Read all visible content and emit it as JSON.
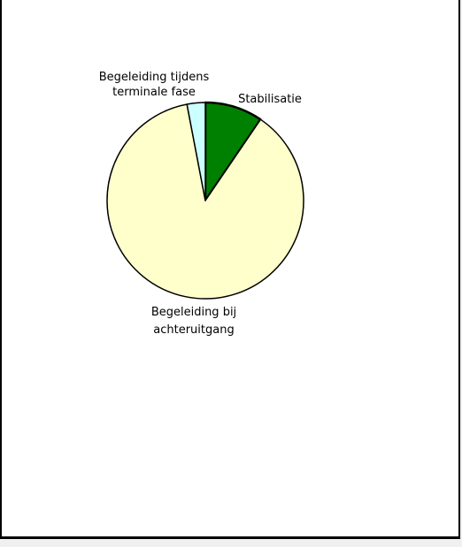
{
  "chart_data": {
    "type": "pie",
    "title": "",
    "slices": [
      {
        "label_lines": [
          "Stabilisatie"
        ],
        "value": 9.5,
        "color": "#008000"
      },
      {
        "label_lines": [
          "Begeleiding bij",
          "achteruitgang"
        ],
        "value": 87.5,
        "color": "#ffffcc"
      },
      {
        "label_lines": [
          "Begeleiding tijdens",
          "terminale fase"
        ],
        "value": 3.0,
        "color": "#ccffff"
      }
    ],
    "start_angle_deg": 0,
    "direction": "clockwise",
    "legend": "none"
  }
}
